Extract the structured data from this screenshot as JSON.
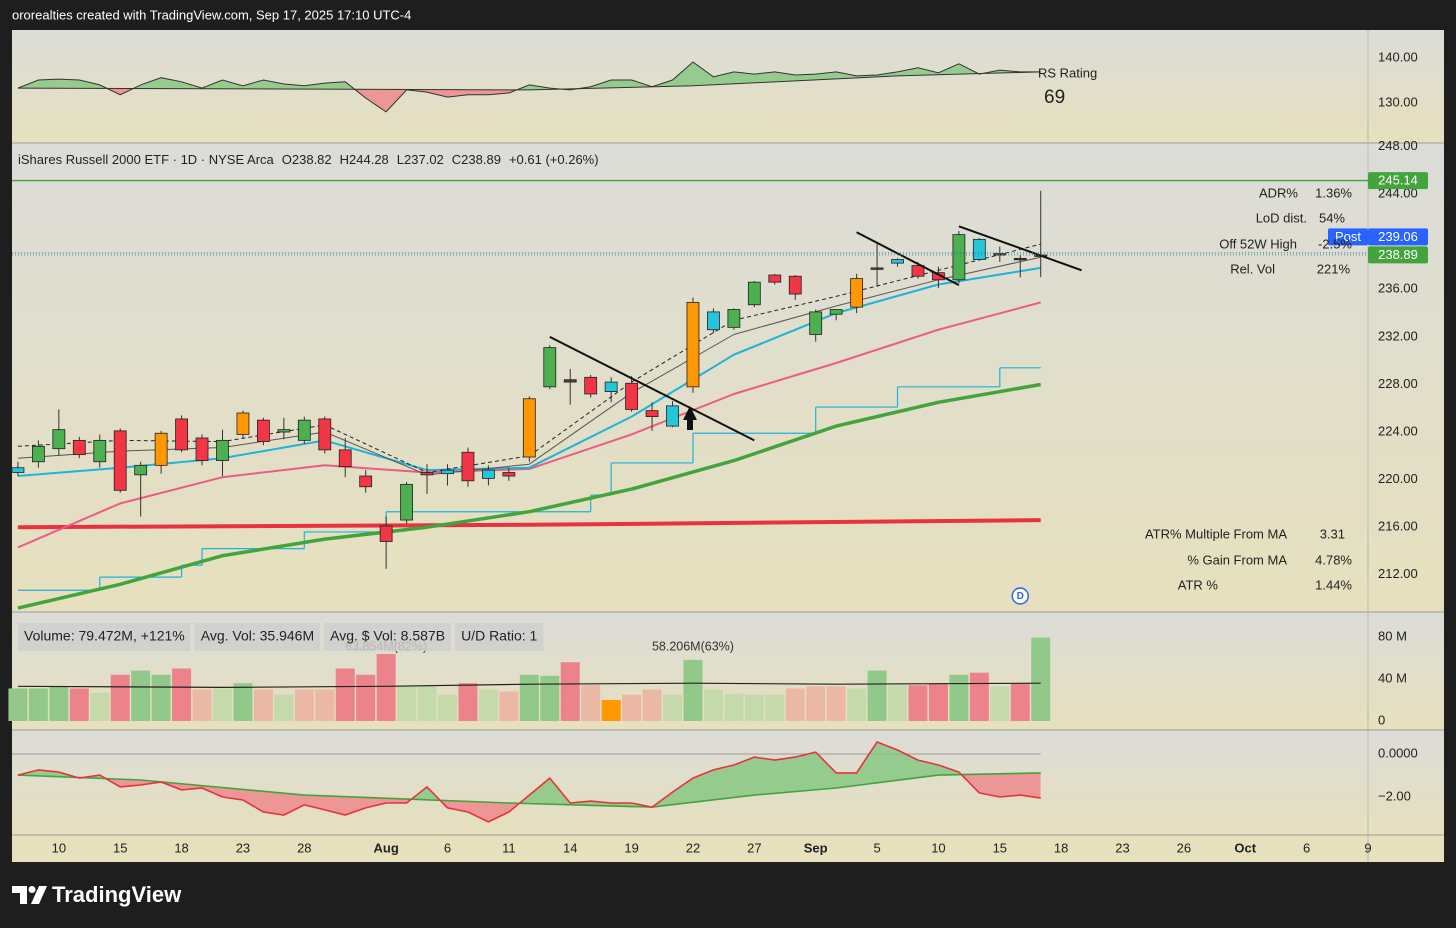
{
  "header": {
    "attribution": "ororealties created with TradingView.com, Sep 17, 2025 17:10 UTC-4"
  },
  "footer": {
    "brand": "TradingView"
  },
  "chart_data": {
    "type": "candlestick",
    "title": "iShares Russell 2000 ETF · 1D · NYSE Arca",
    "ohlc_labels": [
      "O238.82",
      "H244.28",
      "L237.02",
      "C238.89",
      "+0.61 (+0.26%)"
    ],
    "xlim": [
      -0.29,
      66.0
    ],
    "xticks": [
      {
        "value": 2,
        "label": "10"
      },
      {
        "value": 5,
        "label": "15"
      },
      {
        "value": 8,
        "label": "18"
      },
      {
        "value": 11,
        "label": "23"
      },
      {
        "value": 14,
        "label": "28"
      },
      {
        "value": 18,
        "label": "Aug",
        "major": true
      },
      {
        "value": 21,
        "label": "6"
      },
      {
        "value": 24,
        "label": "11"
      },
      {
        "value": 27,
        "label": "14"
      },
      {
        "value": 30,
        "label": "19"
      },
      {
        "value": 33,
        "label": "22"
      },
      {
        "value": 36,
        "label": "27"
      },
      {
        "value": 39,
        "label": "Sep",
        "major": true
      },
      {
        "value": 42,
        "label": "5"
      },
      {
        "value": 45,
        "label": "10"
      },
      {
        "value": 48,
        "label": "15"
      },
      {
        "value": 51,
        "label": "18"
      },
      {
        "value": 54,
        "label": "23"
      },
      {
        "value": 57,
        "label": "26"
      },
      {
        "value": 60,
        "label": "Oct",
        "major": true
      },
      {
        "value": 63,
        "label": "6"
      },
      {
        "value": 66,
        "label": "9"
      }
    ],
    "ylim": [
      208.87,
      248.3
    ],
    "yticks": [
      {
        "value": 212,
        "label": "212.00"
      },
      {
        "value": 216,
        "label": "216.00"
      },
      {
        "value": 220,
        "label": "220.00"
      },
      {
        "value": 224,
        "label": "224.00"
      },
      {
        "value": 228,
        "label": "228.00"
      },
      {
        "value": 232,
        "label": "232.00"
      },
      {
        "value": 236,
        "label": "236.00"
      },
      {
        "value": 244,
        "label": "244.00"
      },
      {
        "value": 248,
        "label": "248.00"
      }
    ],
    "open": [
      221,
      221.5,
      222.6,
      223.3,
      221.5,
      224.1,
      220.4,
      221.2,
      225.1,
      223.5,
      221.6,
      223.8,
      225,
      224,
      223.3,
      225.1,
      222.5,
      220.3,
      216.1,
      216.6,
      220.6,
      220.5,
      222.3,
      220.1,
      220.6,
      221.9,
      227.8,
      228.4,
      228.6,
      227.4,
      228.1,
      225.8,
      224.5,
      227.8,
      232.6,
      232.8,
      234.7,
      237.2,
      237.1,
      232.2,
      233.9,
      234.5,
      237.7,
      238.2,
      238,
      237.4,
      236.8,
      240.2,
      239,
      238.5,
      238.82
    ],
    "high": [
      221.5,
      223.3,
      225.9,
      223.6,
      223.8,
      224.3,
      221.5,
      224.1,
      225.4,
      223.8,
      224.2,
      225.8,
      225.2,
      225.2,
      225.3,
      225.3,
      223.5,
      220.8,
      216.9,
      219.8,
      221.3,
      221.3,
      222.7,
      221.2,
      221,
      227,
      231.3,
      229.3,
      228.8,
      228.6,
      228.7,
      226.5,
      226.6,
      235.3,
      234.4,
      234.4,
      236.7,
      237.3,
      237.2,
      234.3,
      234.3,
      237.3,
      239.9,
      238.6,
      238.3,
      237.9,
      240.9,
      240.3,
      239.6,
      238.9,
      244.28
    ],
    "low": [
      220.3,
      221,
      222,
      221.8,
      221,
      218.9,
      216.9,
      220.5,
      222.3,
      221.2,
      220.3,
      223.5,
      222.9,
      223.4,
      223,
      222.2,
      220.2,
      218.9,
      212.5,
      216.3,
      218.8,
      219.5,
      219.4,
      219.5,
      219.9,
      221.5,
      227.6,
      226.3,
      226.9,
      226.5,
      225.7,
      224.1,
      224.4,
      227.3,
      232.3,
      232.6,
      234.5,
      236.4,
      235.1,
      231.6,
      233.4,
      234,
      236.2,
      237.9,
      236.9,
      236.1,
      236.5,
      238.4,
      238.3,
      237,
      237.02
    ],
    "close": [
      220.6,
      222.8,
      224.2,
      222.1,
      223.3,
      219.1,
      221.2,
      223.9,
      222.5,
      221.6,
      223.3,
      225.6,
      223.2,
      224.2,
      225,
      222.5,
      221.1,
      219.4,
      214.8,
      219.6,
      220.4,
      220.8,
      219.9,
      220.8,
      220.3,
      226.8,
      231.1,
      228.2,
      227.2,
      228.2,
      225.9,
      225.3,
      226.2,
      234.9,
      234.1,
      234.3,
      236.6,
      236.6,
      235.6,
      234.1,
      234.3,
      236.9,
      237.8,
      238.5,
      237.1,
      236.8,
      240.6,
      238.5,
      238.9,
      238.6,
      238.89
    ],
    "colors": [
      "#26c6da",
      "#4caf50",
      "#4caf50",
      "#f23645",
      "#4caf50",
      "#f23645",
      "#4caf50",
      "#ff9800",
      "#f23645",
      "#f23645",
      "#4caf50",
      "#ff9800",
      "#f23645",
      "#4caf50",
      "#4caf50",
      "#f23645",
      "#f23645",
      "#f23645",
      "#f23645",
      "#4caf50",
      "#f23645",
      "#26c6da",
      "#f23645",
      "#26c6da",
      "#f23645",
      "#ff9800",
      "#4caf50",
      "#5d4037",
      "#f23645",
      "#26c6da",
      "#f23645",
      "#f23645",
      "#26c6da",
      "#ff9800",
      "#26c6da",
      "#4caf50",
      "#4caf50",
      "#f23645",
      "#f23645",
      "#4caf50",
      "#4caf50",
      "#ff9800",
      "#5d4037",
      "#26c6da",
      "#f23645",
      "#f23645",
      "#4caf50",
      "#26c6da",
      "#5d4037",
      "#5d4037",
      "#5d4037"
    ],
    "overlays": [
      {
        "color": "#1eb3d8",
        "width": 1.2,
        "step": true,
        "x": [
          0,
          4,
          8,
          9,
          14,
          18,
          28,
          29,
          33,
          39,
          43,
          48,
          50
        ],
        "values": [
          210.7,
          211.8,
          212.8,
          214.2,
          215.6,
          217.3,
          218.7,
          221.4,
          223.9,
          226.1,
          227.8,
          229.4,
          229.4
        ]
      },
      {
        "color": "#e8323f",
        "width": 4,
        "x": [
          0,
          25,
          50
        ],
        "values": [
          216.0,
          216.2,
          216.6
        ]
      },
      {
        "color": "#43a33d",
        "width": 3.5,
        "x": [
          0,
          5,
          10,
          15,
          20,
          25,
          30,
          35,
          40,
          45,
          50
        ],
        "values": [
          209.2,
          211.2,
          213.6,
          215.0,
          216.0,
          217.3,
          219.2,
          221.6,
          224.5,
          226.5,
          228.0
        ]
      },
      {
        "color": "#ec5b83",
        "width": 2,
        "x": [
          0,
          5,
          10,
          15,
          20,
          25,
          30,
          35,
          40,
          45,
          50
        ],
        "values": [
          214.3,
          218,
          220.2,
          221.2,
          220.6,
          220.9,
          223.8,
          227.2,
          229.8,
          232.6,
          234.9
        ]
      },
      {
        "color": "#1eb3d8",
        "width": 2,
        "x": [
          0,
          5,
          10,
          15,
          20,
          25,
          30,
          35,
          40,
          45,
          50
        ],
        "values": [
          220.3,
          221,
          221.8,
          223.3,
          220.8,
          221,
          225.3,
          230.5,
          234,
          236.4,
          237.8
        ]
      },
      {
        "color": "#555555",
        "width": 1,
        "x": [
          0,
          5,
          10,
          15,
          20,
          25,
          30,
          35,
          40,
          45,
          50
        ],
        "values": [
          221.8,
          222.4,
          222.7,
          224.0,
          220.4,
          221.3,
          227.3,
          232.2,
          234.6,
          236.8,
          238.7
        ]
      },
      {
        "color": "#222222",
        "width": 1,
        "dash": true,
        "x": [
          0,
          5,
          10,
          15,
          20,
          25,
          30,
          35,
          40,
          45,
          50
        ],
        "values": [
          222.8,
          223.3,
          223.2,
          224.6,
          220.6,
          222.0,
          228.2,
          233.4,
          235.4,
          237.6,
          239.8
        ]
      }
    ],
    "trendlines": [
      {
        "x": [
          26,
          36
        ],
        "values": [
          232,
          223.3
        ]
      },
      {
        "x": [
          41,
          46
        ],
        "values": [
          240.8,
          236.35
        ]
      },
      {
        "x": [
          46,
          52
        ],
        "values": [
          241.3,
          237.6
        ]
      }
    ],
    "price_labels": [
      {
        "value": 245.14,
        "label": "245.14",
        "color": "#43a33d",
        "line": "solid"
      },
      {
        "value": 239.06,
        "label": "239.06",
        "color": "#2962ff",
        "line": "dotted",
        "tag": "Post"
      },
      {
        "value": 238.89,
        "label": "238.89",
        "color": "#43a33d",
        "line": "dotted"
      }
    ],
    "stats_top": [
      {
        "label": "ADR%",
        "value": "1.36%"
      },
      {
        "label": "LoD dist.",
        "value": "54%"
      },
      {
        "label": "Off 52W High",
        "value": "-2.5%"
      },
      {
        "label": "Rel. Vol",
        "value": "221%"
      }
    ],
    "stats_bottom": [
      {
        "label": "ATR% Multiple From MA",
        "value": "3.31"
      },
      {
        "label": "% Gain From MA",
        "value": "4.78%"
      },
      {
        "label": "ATR %",
        "value": "1.44%"
      }
    ],
    "dividend_marker": {
      "x": 49,
      "label": "D"
    },
    "rs_panel": {
      "label": "RS Rating",
      "rating": "69",
      "ylim": [
        121.1,
        146.2
      ],
      "yticks": [
        {
          "value": 140,
          "label": "140.00"
        },
        {
          "value": 130,
          "label": "130.00"
        }
      ],
      "values": [
        133.3,
        135.1,
        135.3,
        135.1,
        134,
        131.8,
        134,
        135.6,
        134.7,
        133.3,
        135.1,
        133.8,
        135.1,
        134.2,
        133.8,
        134.4,
        134.7,
        131.1,
        128,
        132.9,
        132.4,
        131.3,
        131.8,
        131.8,
        132.2,
        134,
        133.3,
        132.9,
        133.6,
        135.1,
        135.1,
        133.6,
        135.1,
        139.1,
        135.8,
        136.9,
        136.4,
        136.9,
        136.2,
        136.4,
        136.9,
        136,
        136.2,
        136.9,
        137.8,
        136.7,
        138.7,
        136.4,
        137.3,
        136.9,
        136.9
      ],
      "baseline": {
        "x": [
          0,
          25,
          33,
          43,
          50
        ],
        "values": [
          133.3,
          132.9,
          133.8,
          136,
          136.9
        ]
      },
      "up_color": "#7cc47a",
      "down_color": "#ef7d86"
    },
    "volume_panel": {
      "legend": [
        "Volume: 79.472M, +121%",
        "Avg. Vol: 35.946M",
        "Avg. $ Vol: 8.587B",
        "U/D Ratio: 1"
      ],
      "ylim": [
        -8.57,
        103.8
      ],
      "yticks": [
        {
          "value": 80,
          "label": "80 M"
        },
        {
          "value": 40,
          "label": "40 M"
        },
        0
      ],
      "values": [
        31,
        31,
        33,
        31,
        27,
        44,
        48,
        44,
        50,
        30,
        31,
        36,
        30,
        25,
        30,
        30,
        50,
        44,
        63.854,
        33,
        33,
        25,
        36,
        30,
        28,
        44,
        43,
        56,
        34,
        20,
        25,
        30,
        25,
        58.206,
        30,
        26,
        25,
        25,
        31,
        33,
        33,
        31,
        48,
        34,
        34,
        36,
        44,
        46,
        33,
        36,
        79.472
      ],
      "colors": [
        "#92c98a",
        "#92c98a",
        "#92c98a",
        "#ec838b",
        "#c5d9ab",
        "#ec838b",
        "#92c98a",
        "#92c98a",
        "#ec838b",
        "#ebb8a6",
        "#c5d9ab",
        "#92c98a",
        "#ebb8a6",
        "#c5d9ab",
        "#ebb8a6",
        "#ebb8a6",
        "#ec838b",
        "#ec838b",
        "#ec838b",
        "#c5d9ab",
        "#c5d9ab",
        "#c5d9ab",
        "#ec838b",
        "#c5d9ab",
        "#ebb8a6",
        "#92c98a",
        "#92c98a",
        "#ec838b",
        "#ebb8a6",
        "#ff9800",
        "#ebb8a6",
        "#ebb8a6",
        "#c5d9ab",
        "#92c98a",
        "#c5d9ab",
        "#c5d9ab",
        "#c5d9ab",
        "#c5d9ab",
        "#ebb8a6",
        "#ebb8a6",
        "#ebb8a6",
        "#c5d9ab",
        "#92c98a",
        "#c5d9ab",
        "#ec838b",
        "#ec838b",
        "#92c98a",
        "#ec838b",
        "#c5d9ab",
        "#ec838b",
        "#92c98a"
      ],
      "average": {
        "x": [
          0,
          10,
          18,
          25,
          33,
          40,
          50
        ],
        "values": [
          33,
          32,
          33,
          35,
          36,
          35,
          36
        ]
      },
      "annotations": [
        {
          "x": 18,
          "label": "63.854M(82%)"
        },
        {
          "x": 33,
          "label": "58.206M(63%)"
        }
      ]
    },
    "oscillator_panel": {
      "ylim": [
        -3.77,
        1.12
      ],
      "yticks": [
        {
          "value": 0,
          "label": "0.0000"
        },
        {
          "value": -2,
          "label": "−2.00"
        }
      ],
      "zero_line": true,
      "line": {
        "color": "#e8323f",
        "values": [
          -0.98,
          -0.74,
          -0.84,
          -1.12,
          -0.98,
          -1.53,
          -1.44,
          -1.3,
          -1.67,
          -1.58,
          -2.0,
          -2.14,
          -2.7,
          -2.84,
          -2.37,
          -2.6,
          -2.84,
          -2.51,
          -2.28,
          -2.28,
          -1.53,
          -2.51,
          -2.7,
          -3.16,
          -2.7,
          -1.91,
          -1.12,
          -2.28,
          -2.19,
          -2.28,
          -2.28,
          -2.47,
          -1.77,
          -1.12,
          -0.74,
          -0.51,
          -0.14,
          -0.28,
          -0.14,
          0.09,
          -0.88,
          -0.88,
          0.56,
          0.19,
          -0.28,
          -0.51,
          -0.84,
          -1.81,
          -2.0,
          -1.91,
          -2.05
        ]
      },
      "signal": {
        "color": "#43a33d",
        "x": [
          0,
          6,
          14,
          24,
          31,
          36,
          40,
          45,
          50
        ],
        "values": [
          -0.98,
          -1.21,
          -1.91,
          -2.28,
          -2.47,
          -1.91,
          -1.58,
          -0.98,
          -0.88
        ]
      },
      "up_color": "#7cc47a",
      "down_color": "#ef7d86"
    }
  }
}
